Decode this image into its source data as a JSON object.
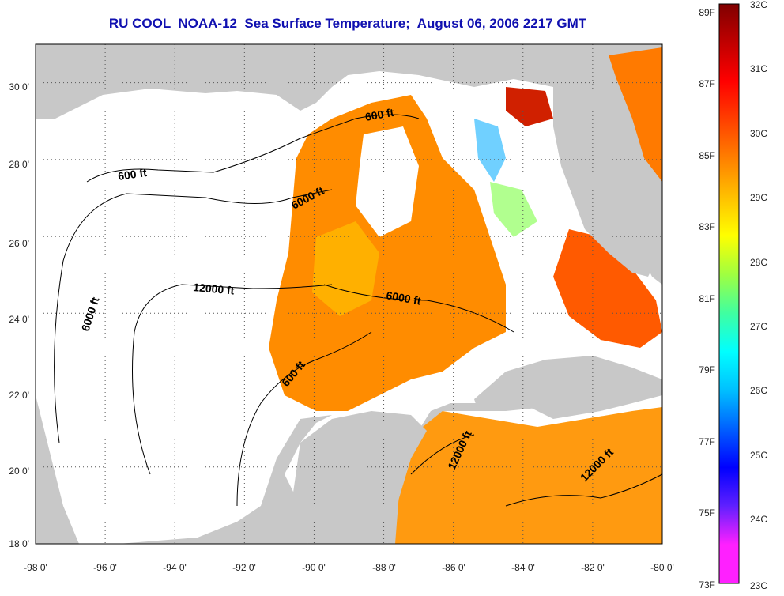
{
  "title": "RU COOL  NOAA-12  Sea Surface Temperature;  August 06, 2006 2217 GMT",
  "map": {
    "lon_labels": [
      "-98 0'",
      "-96 0'",
      "-94 0'",
      "-92 0'",
      "-90 0'",
      "-88 0'",
      "-86 0'",
      "-84 0'",
      "-82 0'",
      "-80 0'"
    ],
    "lat_labels": [
      "18 0'",
      "20 0'",
      "22 0'",
      "24 0'",
      "26 0'",
      "28 0'",
      "30 0'"
    ],
    "lon_range": [
      -98,
      -80
    ],
    "lat_range": [
      18,
      31
    ],
    "grid": "dotted",
    "colors": {
      "land": "#c8c8c8",
      "no_data": "#ffffff",
      "sst_warm": "#ff8c00",
      "sst_hot": "#ff3000",
      "sst_cool": "#ffe000"
    },
    "contour_labels": [
      {
        "text": "600 ft"
      },
      {
        "text": "600 ft"
      },
      {
        "text": "600 ft"
      },
      {
        "text": "6000 ft"
      },
      {
        "text": "6000 ft"
      },
      {
        "text": "6000 ft"
      },
      {
        "text": "12000 ft"
      },
      {
        "text": "12000 ft"
      },
      {
        "text": "12000 ft"
      }
    ]
  },
  "colorbar": {
    "fahrenheit": [
      "89F",
      "87F",
      "85F",
      "83F",
      "81F",
      "79F",
      "77F",
      "75F",
      "73F"
    ],
    "celsius": [
      "32C",
      "31C",
      "30C",
      "29C",
      "28C",
      "27C",
      "26C",
      "25C",
      "24C",
      "23C"
    ],
    "range_c": [
      23,
      32
    ],
    "stops": [
      "#ff20ff",
      "#ff20ff",
      "#6020ff",
      "#0000ff",
      "#0060ff",
      "#00c0ff",
      "#00ffff",
      "#40ffa0",
      "#a0ff40",
      "#ffff00",
      "#ffc000",
      "#ff8000",
      "#ff4000",
      "#ff0000",
      "#c00000",
      "#800000"
    ]
  }
}
